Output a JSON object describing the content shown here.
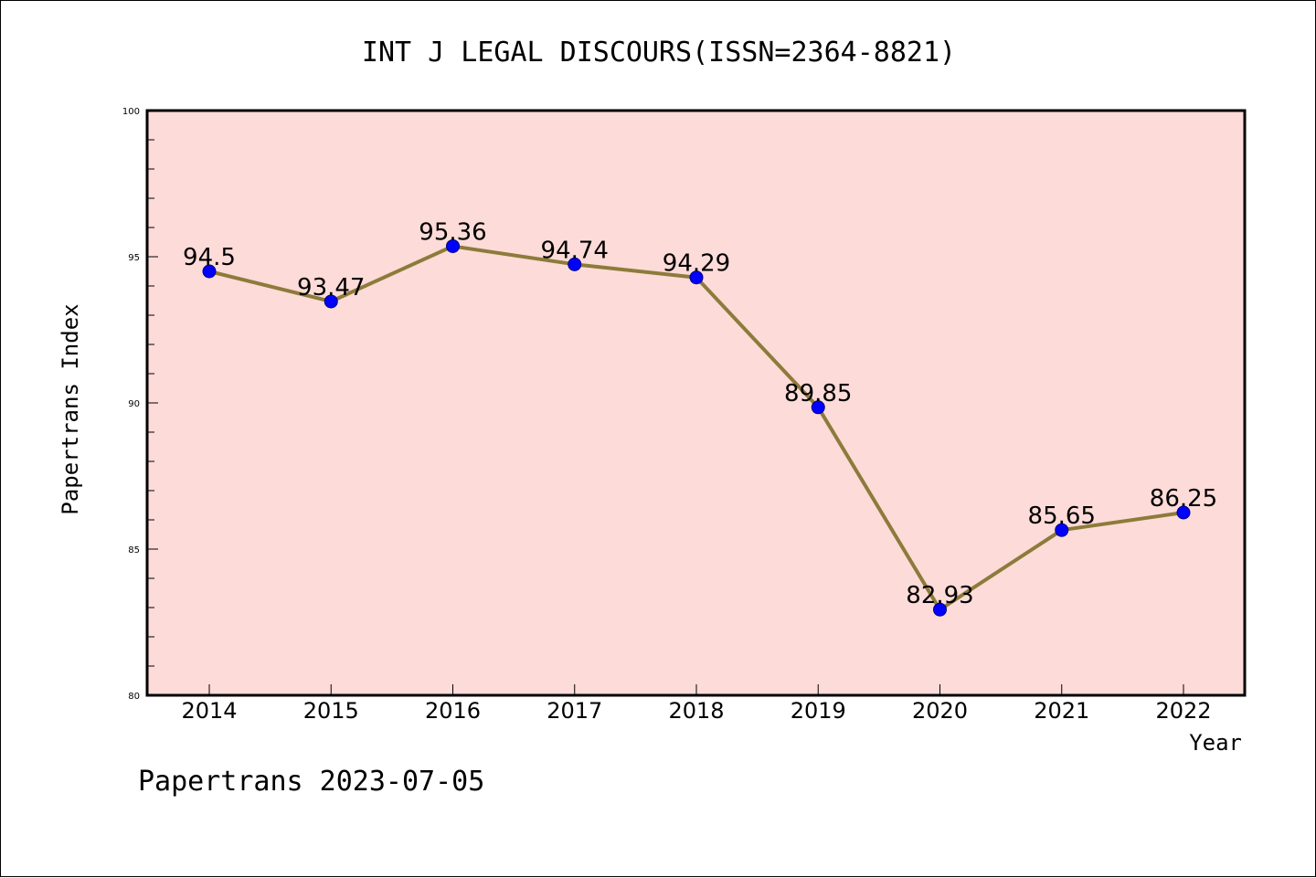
{
  "chart_data": {
    "type": "line",
    "title": "INT J LEGAL DISCOURS(ISSN=2364-8821)",
    "xlabel": "Year",
    "ylabel": "Papertrans Index",
    "categories": [
      "2014",
      "2015",
      "2016",
      "2017",
      "2018",
      "2019",
      "2020",
      "2021",
      "2022"
    ],
    "series": [
      {
        "values": [
          94.5,
          93.47,
          95.36,
          94.74,
          94.29,
          89.85,
          82.93,
          85.65,
          86.25
        ],
        "data_labels": [
          "94.5",
          "93.47",
          "95.36",
          "94.74",
          "94.29",
          "89.85",
          "82.93",
          "85.65",
          "86.25"
        ]
      }
    ],
    "ylim": [
      80,
      100
    ],
    "yticks": [
      "80",
      "85",
      "90",
      "95",
      "100"
    ],
    "grid": false,
    "colors": {
      "plot_background": "#fddbd8",
      "line": "#8c7b3a",
      "marker": "#0000ff",
      "marker_edge": "#000080"
    }
  },
  "footer": {
    "text": "Papertrans 2023-07-05"
  }
}
